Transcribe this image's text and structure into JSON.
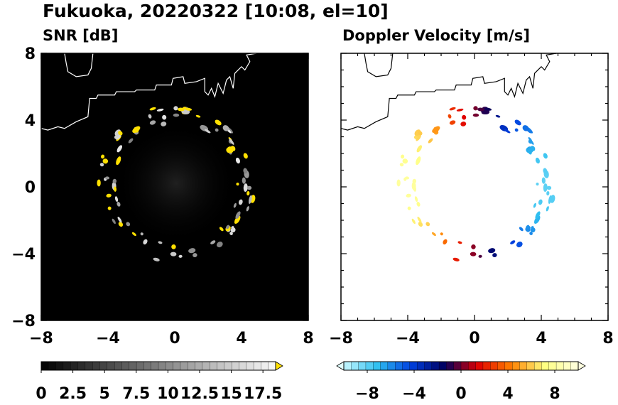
{
  "figure": {
    "title": "Fukuoka, 20220322 [10:08, el=10]"
  },
  "chart_data": [
    {
      "type": "heatmap",
      "title": "SNR [dB]",
      "xlabel": "",
      "ylabel": "",
      "xlim": [
        -8,
        8
      ],
      "ylim": [
        -8,
        8
      ],
      "x_ticks": [
        -8,
        -4,
        0,
        4,
        8
      ],
      "y_ticks": [
        -8,
        -4,
        0,
        4,
        8
      ],
      "x_tick_labels": [
        "−8",
        "−4",
        "0",
        "4",
        "8"
      ],
      "y_tick_labels": [
        "−8",
        "−4",
        "0",
        "4",
        "8"
      ],
      "background": "#000000",
      "colorbar": {
        "min": 0,
        "max": 18.5,
        "extend": "max",
        "ticks": [
          0,
          2.5,
          5,
          7.5,
          10,
          12.5,
          15,
          17.5
        ],
        "tick_labels": [
          "0",
          "2.5",
          "5",
          "7.5",
          "10",
          "12.5",
          "15",
          "17.5"
        ],
        "colors": [
          "#000000",
          "#808080",
          "#f8f8f8"
        ],
        "over_color": "#ffe000"
      },
      "echo_ring": {
        "center": [
          0.1,
          0.2
        ],
        "radius_km": 4.2
      }
    },
    {
      "type": "heatmap",
      "title": "Doppler Velocity [m/s]",
      "xlabel": "",
      "ylabel": "",
      "xlim": [
        -8,
        8
      ],
      "ylim": [
        -8,
        8
      ],
      "x_ticks": [
        -8,
        -4,
        0,
        4,
        8
      ],
      "y_ticks": [
        -8,
        -4,
        0,
        4,
        8
      ],
      "x_tick_labels": [
        "−8",
        "−4",
        "0",
        "4",
        "8"
      ],
      "y_tick_labels": [
        "−8",
        "−4",
        "0",
        "4",
        "8"
      ],
      "background": "#ffffff",
      "colorbar": {
        "min": -10,
        "max": 10,
        "extend": "both",
        "ticks": [
          -8,
          -4,
          0,
          4,
          8
        ],
        "tick_labels": [
          "−8",
          "−4",
          "0",
          "4",
          "8"
        ],
        "colors": [
          "#c8f8ff",
          "#30c0f0",
          "#0040e0",
          "#000060",
          "#e00000",
          "#ff8000",
          "#ffff80",
          "#ffffe0"
        ],
        "under_color": "#e0ffff",
        "over_color": "#ffffe0"
      },
      "echo_ring": {
        "center": [
          0.1,
          0.2
        ],
        "radius_km": 4.2
      }
    }
  ],
  "coastline": {
    "left": [
      [
        -8,
        3.5
      ],
      [
        -7.6,
        3.4
      ],
      [
        -7,
        3.6
      ],
      [
        -6.6,
        3.5
      ],
      [
        -5.9,
        3.9
      ],
      [
        -5.2,
        4.2
      ],
      [
        -5.1,
        5.3
      ],
      [
        -4.7,
        5.3
      ],
      [
        -4.6,
        5.5
      ],
      [
        -3.6,
        5.5
      ],
      [
        -3.5,
        5.7
      ],
      [
        -2.4,
        5.7
      ],
      [
        -2.3,
        5.8
      ],
      [
        -1.2,
        5.8
      ],
      [
        -1.1,
        6.1
      ],
      [
        -0.2,
        6.1
      ],
      [
        -0.1,
        6.5
      ],
      [
        0.5,
        6.6
      ],
      [
        0.6,
        6.2
      ],
      [
        1.3,
        6.3
      ],
      [
        1.8,
        6.5
      ],
      [
        1.8,
        5.7
      ],
      [
        2.0,
        5.5
      ],
      [
        2.2,
        5.9
      ],
      [
        2.4,
        5.4
      ],
      [
        2.6,
        6.2
      ],
      [
        2.9,
        5.6
      ],
      [
        3.1,
        6.4
      ],
      [
        3.3,
        6.6
      ],
      [
        3.5,
        5.9
      ],
      [
        3.6,
        6.8
      ],
      [
        4.0,
        7.2
      ],
      [
        4.2,
        7.0
      ],
      [
        4.5,
        7.5
      ],
      [
        4.3,
        7.9
      ],
      [
        4.9,
        8.0
      ]
    ],
    "left_island": [
      [
        -6.6,
        8.0
      ],
      [
        -6.5,
        7.4
      ],
      [
        -6.4,
        6.9
      ],
      [
        -5.9,
        6.6
      ],
      [
        -5.2,
        6.7
      ],
      [
        -5.0,
        7.1
      ],
      [
        -4.9,
        8.0
      ]
    ]
  }
}
